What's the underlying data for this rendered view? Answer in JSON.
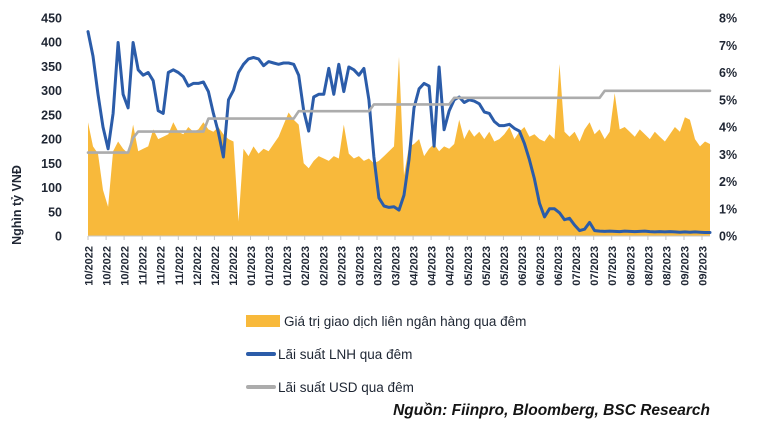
{
  "chart_data": {
    "type": "area",
    "left_axis": {
      "label": "Nghìn tỷ VNĐ",
      "max": 450,
      "ticks": [
        0,
        50,
        100,
        150,
        200,
        250,
        300,
        350,
        400,
        450
      ]
    },
    "right_axis": {
      "max": 8,
      "suffix": "%",
      "ticks": [
        0,
        1,
        2,
        3,
        4,
        5,
        6,
        7,
        8
      ]
    },
    "x_tick_labels": [
      "10/2022",
      "10/2022",
      "10/2022",
      "11/2022",
      "11/2022",
      "11/2022",
      "12/2022",
      "12/2022",
      "12/2022",
      "01/2023",
      "01/2023",
      "01/2023",
      "02/2023",
      "02/2023",
      "02/2023",
      "03/2023",
      "03/2023",
      "03/2023",
      "04/2023",
      "04/2023",
      "04/2023",
      "05/2023",
      "05/2023",
      "05/2023",
      "06/2023",
      "06/2023",
      "06/2023",
      "07/2023",
      "07/2023",
      "07/2023",
      "08/2023",
      "08/2023",
      "08/2023",
      "09/2023",
      "09/2023"
    ],
    "series": [
      {
        "name": "Giá trị giao dịch liên ngân hàng qua đêm",
        "type": "area",
        "axis": "left",
        "color": "#F8B93B",
        "values": [
          235,
          185,
          170,
          95,
          60,
          175,
          195,
          180,
          170,
          230,
          175,
          180,
          185,
          220,
          200,
          205,
          210,
          235,
          215,
          210,
          225,
          215,
          220,
          235,
          220,
          215,
          225,
          210,
          200,
          195,
          30,
          180,
          165,
          185,
          170,
          180,
          175,
          190,
          205,
          230,
          255,
          240,
          230,
          150,
          140,
          155,
          165,
          160,
          155,
          165,
          160,
          230,
          170,
          160,
          165,
          155,
          160,
          150,
          155,
          165,
          175,
          185,
          370,
          125,
          185,
          190,
          200,
          165,
          180,
          190,
          175,
          185,
          180,
          190,
          240,
          200,
          220,
          205,
          215,
          200,
          215,
          195,
          200,
          210,
          225,
          200,
          215,
          225,
          205,
          210,
          200,
          195,
          210,
          200,
          355,
          215,
          205,
          215,
          195,
          220,
          235,
          210,
          220,
          200,
          215,
          295,
          220,
          225,
          215,
          205,
          220,
          210,
          200,
          215,
          205,
          195,
          210,
          225,
          215,
          245,
          240,
          200,
          185,
          195,
          190
        ]
      },
      {
        "name": "Lãi suất LNH qua đêm",
        "type": "line",
        "axis": "right",
        "color": "#2B5CA9",
        "values": [
          7.5,
          6.6,
          5.2,
          4.0,
          3.2,
          4.5,
          7.1,
          5.2,
          4.7,
          7.1,
          6.1,
          5.9,
          6.0,
          5.7,
          4.6,
          4.5,
          6.0,
          6.1,
          6.0,
          5.85,
          5.5,
          5.6,
          5.6,
          5.65,
          5.3,
          4.5,
          3.8,
          2.9,
          5.0,
          5.35,
          6.0,
          6.3,
          6.5,
          6.55,
          6.5,
          6.25,
          6.4,
          6.35,
          6.3,
          6.35,
          6.35,
          6.3,
          5.9,
          4.6,
          3.85,
          5.1,
          5.2,
          5.2,
          6.15,
          5.2,
          6.3,
          5.3,
          6.2,
          6.1,
          5.9,
          6.15,
          5.0,
          2.9,
          1.4,
          1.1,
          1.05,
          1.07,
          0.95,
          1.5,
          2.8,
          4.7,
          5.4,
          5.6,
          5.5,
          3.3,
          6.2,
          3.9,
          4.6,
          5.0,
          5.1,
          4.9,
          5.0,
          4.95,
          4.85,
          4.55,
          4.5,
          4.2,
          4.05,
          4.05,
          4.1,
          3.95,
          3.85,
          3.4,
          2.8,
          2.1,
          1.2,
          0.7,
          1.0,
          1.0,
          0.85,
          0.6,
          0.65,
          0.4,
          0.2,
          0.25,
          0.5,
          0.2,
          0.18,
          0.17,
          0.18,
          0.17,
          0.16,
          0.18,
          0.17,
          0.16,
          0.17,
          0.18,
          0.16,
          0.15,
          0.16,
          0.15,
          0.16,
          0.15,
          0.14,
          0.15,
          0.14,
          0.15,
          0.14,
          0.13,
          0.13
        ]
      },
      {
        "name": "Lãi suất USD qua đêm",
        "type": "line",
        "axis": "right",
        "color": "#ACACAC",
        "values": [
          3.06,
          3.06,
          3.06,
          3.06,
          3.06,
          3.06,
          3.06,
          3.06,
          3.06,
          3.6,
          3.83,
          3.83,
          3.83,
          3.83,
          3.83,
          3.83,
          3.83,
          3.83,
          3.83,
          3.83,
          3.83,
          3.83,
          3.83,
          3.83,
          4.31,
          4.31,
          4.31,
          4.31,
          4.31,
          4.31,
          4.31,
          4.31,
          4.31,
          4.31,
          4.31,
          4.31,
          4.31,
          4.31,
          4.31,
          4.31,
          4.31,
          4.31,
          4.58,
          4.58,
          4.58,
          4.58,
          4.58,
          4.58,
          4.58,
          4.58,
          4.58,
          4.58,
          4.58,
          4.58,
          4.58,
          4.58,
          4.58,
          4.83,
          4.83,
          4.83,
          4.83,
          4.83,
          4.83,
          4.83,
          4.83,
          4.83,
          4.83,
          4.83,
          4.83,
          4.83,
          4.83,
          4.83,
          4.83,
          5.07,
          5.07,
          5.07,
          5.07,
          5.07,
          5.07,
          5.07,
          5.07,
          5.07,
          5.07,
          5.07,
          5.07,
          5.07,
          5.07,
          5.07,
          5.07,
          5.07,
          5.07,
          5.07,
          5.07,
          5.07,
          5.07,
          5.07,
          5.07,
          5.07,
          5.07,
          5.07,
          5.07,
          5.07,
          5.07,
          5.33,
          5.33,
          5.33,
          5.33,
          5.33,
          5.33,
          5.33,
          5.33,
          5.33,
          5.33,
          5.33,
          5.33,
          5.33,
          5.33,
          5.33,
          5.33,
          5.33,
          5.33,
          5.33,
          5.33,
          5.33,
          5.33
        ]
      }
    ]
  },
  "legend": {
    "items": [
      {
        "label": "Giá trị giao dịch liên ngân hàng qua đêm",
        "color": "#F8B93B"
      },
      {
        "label": "Lãi suất LNH qua đêm",
        "color": "#2B5CA9"
      },
      {
        "label": "Lãi suất USD qua đêm",
        "color": "#ACACAC"
      }
    ]
  },
  "source_note": "Nguồn: Fiinpro, Bloomberg, BSC Research"
}
